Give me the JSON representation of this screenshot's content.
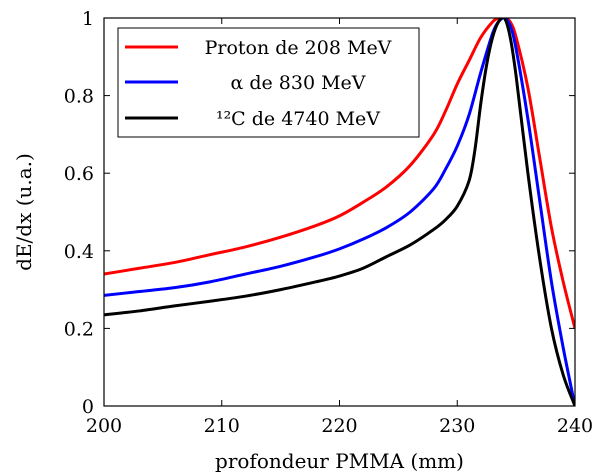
{
  "chart_data": {
    "type": "line",
    "title": "",
    "xlabel": "profondeur PMMA (mm)",
    "ylabel": "dE/dx (u.a.)",
    "xlim": [
      200,
      240
    ],
    "ylim": [
      0,
      1
    ],
    "xticks": [
      200,
      210,
      220,
      230,
      240
    ],
    "yticks": [
      0,
      0.2,
      0.4,
      0.6,
      0.8,
      1
    ],
    "ytick_labels": [
      "0",
      "0.2",
      "0.4",
      "0.6",
      "0.8",
      "1"
    ],
    "grid": false,
    "legend_position": "top-left",
    "series": [
      {
        "name": "Proton de 208 MeV",
        "color": "#ff0000",
        "x": [
          200,
          203,
          206,
          209,
          212,
          215,
          218,
          220,
          222,
          224,
          226,
          228,
          229,
          230,
          231,
          232,
          233,
          233.5,
          234,
          234.5,
          235,
          236,
          237,
          238,
          239,
          240
        ],
        "y": [
          0.34,
          0.355,
          0.37,
          0.39,
          0.41,
          0.435,
          0.465,
          0.49,
          0.525,
          0.565,
          0.62,
          0.7,
          0.76,
          0.83,
          0.89,
          0.95,
          0.99,
          1.0,
          1.0,
          0.99,
          0.95,
          0.82,
          0.64,
          0.46,
          0.32,
          0.2
        ]
      },
      {
        "name": "α de 830 MeV",
        "color": "#0000ff",
        "x": [
          200,
          203,
          206,
          209,
          212,
          215,
          218,
          220,
          222,
          224,
          226,
          228,
          229,
          230,
          231,
          232,
          233,
          233.5,
          234,
          234.5,
          235,
          236,
          237,
          238,
          239,
          240
        ],
        "y": [
          0.285,
          0.295,
          0.305,
          0.32,
          0.34,
          0.36,
          0.385,
          0.405,
          0.43,
          0.46,
          0.5,
          0.56,
          0.61,
          0.67,
          0.75,
          0.86,
          0.96,
          0.99,
          1.0,
          0.98,
          0.92,
          0.74,
          0.53,
          0.32,
          0.15,
          0.0
        ]
      },
      {
        "name": "¹²C de 4740 MeV",
        "color": "#000000",
        "x": [
          200,
          203,
          206,
          209,
          212,
          215,
          218,
          220,
          222,
          224,
          226,
          228,
          229,
          230,
          231,
          231.5,
          232,
          232.5,
          233,
          233.5,
          234,
          234.5,
          235,
          236,
          237,
          238,
          239,
          240
        ],
        "y": [
          0.235,
          0.245,
          0.258,
          0.27,
          0.283,
          0.3,
          0.32,
          0.335,
          0.355,
          0.385,
          0.415,
          0.455,
          0.48,
          0.515,
          0.58,
          0.66,
          0.78,
          0.88,
          0.95,
          0.99,
          1.0,
          0.95,
          0.85,
          0.6,
          0.38,
          0.2,
          0.08,
          0.0
        ]
      }
    ]
  }
}
